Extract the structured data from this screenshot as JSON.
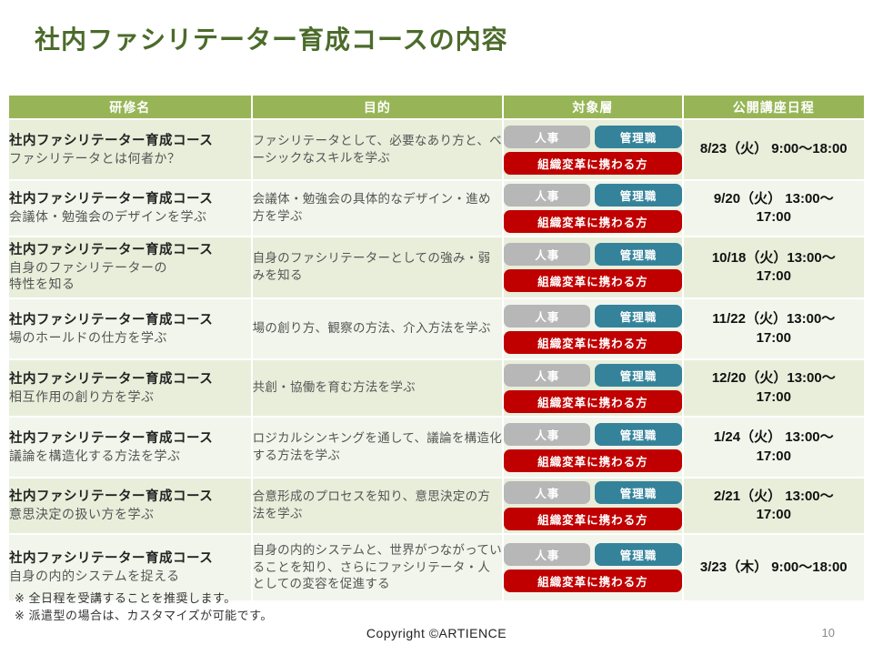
{
  "slide": {
    "title": "社内ファシリテーター育成コースの内容",
    "notes": [
      "※ 全日程を受講することを推奨します。",
      "※ 派遣型の場合は、カスタマイズが可能です。"
    ],
    "copyright": "Copyright ©ARTIENCE",
    "page_number": "10"
  },
  "table": {
    "headers": [
      "研修名",
      "目的",
      "対象層",
      "公開講座日程"
    ],
    "rows": [
      {
        "name_title": "社内ファシリテーター育成コース",
        "name_sub": [
          "ファシリテータとは何者か？"
        ],
        "purpose": "ファシリテータとして、必要なあり方と、ベーシックなスキルを学ぶ",
        "audience": [
          "人事",
          "管理職",
          "組織変革に携わる方"
        ],
        "schedule": [
          "8/23（火） 9:00～18:00"
        ]
      },
      {
        "name_title": "社内ファシリテーター育成コース",
        "name_sub": [
          "会議体・勉強会のデザインを学ぶ"
        ],
        "purpose": "会議体・勉強会の具体的なデザイン・進め方を学ぶ",
        "audience": [
          "人事",
          "管理職",
          "組織変革に携わる方"
        ],
        "schedule": [
          "9/20（火） 13:00～",
          "17:00"
        ]
      },
      {
        "name_title": "社内ファシリテーター育成コース",
        "name_sub": [
          "自身のファシリテーターの",
          "特性を知る"
        ],
        "purpose": "自身のファシリテーターとしての強み・弱みを知る",
        "audience": [
          "人事",
          "管理職",
          "組織変革に携わる方"
        ],
        "schedule": [
          "10/18（火）13:00～",
          "17:00"
        ]
      },
      {
        "name_title": "社内ファシリテーター育成コース",
        "name_sub": [
          "場のホールドの仕方を学ぶ"
        ],
        "purpose": "場の創り方、観察の方法、介入方法を学ぶ",
        "audience": [
          "人事",
          "管理職",
          "組織変革に携わる方"
        ],
        "schedule": [
          "11/22（火）13:00～",
          "17:00"
        ]
      },
      {
        "name_title": "社内ファシリテーター育成コース",
        "name_sub": [
          "相互作用の創り方を学ぶ"
        ],
        "purpose": "共創・協働を育む方法を学ぶ",
        "audience": [
          "人事",
          "管理職",
          "組織変革に携わる方"
        ],
        "schedule": [
          "12/20（火）13:00～",
          "17:00"
        ]
      },
      {
        "name_title": "社内ファシリテーター育成コース",
        "name_sub": [
          "議論を構造化する方法を学ぶ"
        ],
        "purpose": "ロジカルシンキングを通して、議論を構造化する方法を学ぶ",
        "audience": [
          "人事",
          "管理職",
          "組織変革に携わる方"
        ],
        "schedule": [
          "1/24（火） 13:00～",
          "17:00"
        ]
      },
      {
        "name_title": "社内ファシリテーター育成コース",
        "name_sub": [
          "意思決定の扱い方を学ぶ"
        ],
        "purpose": "合意形成のプロセスを知り、意思決定の方法を学ぶ",
        "audience": [
          "人事",
          "管理職",
          "組織変革に携わる方"
        ],
        "schedule": [
          "2/21（火） 13:00～",
          "17:00"
        ]
      },
      {
        "name_title": "社内ファシリテーター育成コース",
        "name_sub": [
          "自身の内的システムを捉える"
        ],
        "purpose": "自身の内的システムと、世界がつながっていることを知り、さらにファシリテータ・人としての変容を促進する",
        "audience": [
          "人事",
          "管理職",
          "組織変革に携わる方"
        ],
        "schedule": [
          "3/23（木） 9:00～18:00"
        ]
      }
    ]
  },
  "colors": {
    "title_green": "#4C6B2B",
    "header_green": "#97B556",
    "row_odd": "#E8EEDA",
    "row_even": "#F2F5EB",
    "badge_gray": "#B7B7B7",
    "badge_teal": "#35839B",
    "badge_red": "#C00000"
  }
}
